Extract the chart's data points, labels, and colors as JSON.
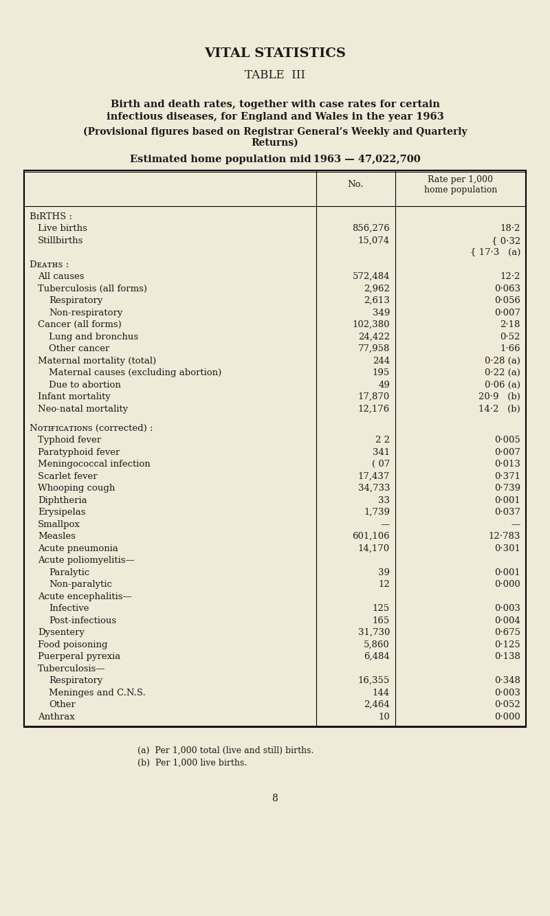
{
  "bg_color": "#f0ead8",
  "title1": "VITAL STATISTICS",
  "title2": "TABLE  III",
  "subtitle1": "Birth and death rates, together with case rates for certain",
  "subtitle2": "infectious diseases, for England and Wales in the year 1963",
  "subtitle3": "(Provisional figures based on Registrar General’s Weekly and Quarterly",
  "subtitle4": "Returns)",
  "subtitle5": "Estimated home population mid 1963 — 47,022,700",
  "col_header1": "No.",
  "col_header2": "Rate per 1,000\nhome population",
  "footnote_a": "(a)  Per 1,000 total (live and still) births.",
  "footnote_b": "(b)  Per 1,000 live births.",
  "page_num": "8",
  "rows": [
    {
      "label": "BɪRTHS :",
      "no": "",
      "rate": "",
      "style": "section",
      "indent": 0
    },
    {
      "label": "Live births",
      "no": "856,276",
      "rate": "18·2",
      "style": "normal",
      "indent": 1
    },
    {
      "label": "Stillbirths",
      "no": "15,074",
      "rate": "{ 0·32",
      "style": "normal",
      "indent": 1
    },
    {
      "label": "",
      "no": "",
      "rate": "{ 17·3   (a)",
      "style": "normal",
      "indent": 1
    },
    {
      "label": "Dᴇᴀᴛʜѕ :",
      "no": "",
      "rate": "",
      "style": "section",
      "indent": 0
    },
    {
      "label": "All causes",
      "no": "572,484",
      "rate": "12·2",
      "style": "normal",
      "indent": 1
    },
    {
      "label": "Tuberculosis (all forms)",
      "no": "2,962",
      "rate": "0·063",
      "style": "normal",
      "indent": 1
    },
    {
      "label": "Respiratory",
      "no": "2,613",
      "rate": "0·056",
      "style": "normal",
      "indent": 2
    },
    {
      "label": "Non-respiratory",
      "no": "349",
      "rate": "0·007",
      "style": "normal",
      "indent": 2
    },
    {
      "label": "Cancer (all forms)",
      "no": "102,380",
      "rate": "2·18",
      "style": "normal",
      "indent": 1
    },
    {
      "label": "Lung and bronchus",
      "no": "24,422",
      "rate": "0·52",
      "style": "normal",
      "indent": 2
    },
    {
      "label": "Other cancer",
      "no": "77,958",
      "rate": "1·66",
      "style": "normal",
      "indent": 2
    },
    {
      "label": "Maternal mortality (total)",
      "no": "244",
      "rate": "0·28 (a)",
      "style": "normal",
      "indent": 1
    },
    {
      "label": "Maternal causes (excluding abortion)",
      "no": "195",
      "rate": "0·22 (a)",
      "style": "normal",
      "indent": 2
    },
    {
      "label": "Due to abortion",
      "no": "49",
      "rate": "0·06 (a)",
      "style": "normal",
      "indent": 2
    },
    {
      "label": "Infant mortality",
      "no": "17,870",
      "rate": "20·9   (b)",
      "style": "normal",
      "indent": 1
    },
    {
      "label": "Neo-natal mortality",
      "no": "12,176",
      "rate": "14·2   (b)",
      "style": "normal",
      "indent": 1
    },
    {
      "label": "",
      "no": "",
      "rate": "",
      "style": "blank",
      "indent": 0
    },
    {
      "label": "Nᴏᴛɪғɪᴄᴀᴛɪᴏɴѕ (corrected) :",
      "no": "",
      "rate": "",
      "style": "section",
      "indent": 0
    },
    {
      "label": "Typhoid fever",
      "no": "2 2",
      "rate": "0·005",
      "style": "normal",
      "indent": 1
    },
    {
      "label": "Paratyphoid fever",
      "no": "341",
      "rate": "0·007",
      "style": "normal",
      "indent": 1
    },
    {
      "label": "Meningococcal infection",
      "no": "( 07",
      "rate": "0·013",
      "style": "normal",
      "indent": 1
    },
    {
      "label": "Scarlet fever",
      "no": "17,437",
      "rate": "0·371",
      "style": "normal",
      "indent": 1
    },
    {
      "label": "Whooping cough",
      "no": "34,733",
      "rate": "0·739",
      "style": "normal",
      "indent": 1
    },
    {
      "label": "Diphtheria",
      "no": "33",
      "rate": "0·001",
      "style": "normal",
      "indent": 1
    },
    {
      "label": "Erysipelas",
      "no": "1,739",
      "rate": "0·037",
      "style": "normal",
      "indent": 1
    },
    {
      "label": "Smallpox",
      "no": "—",
      "rate": "—",
      "style": "normal",
      "indent": 1
    },
    {
      "label": "Measles",
      "no": "601,106",
      "rate": "12·783",
      "style": "normal",
      "indent": 1
    },
    {
      "label": "Acute pneumonia",
      "no": "14,170",
      "rate": "0·301",
      "style": "normal",
      "indent": 1
    },
    {
      "label": "Acute poliomyelitis—",
      "no": "",
      "rate": "",
      "style": "normal",
      "indent": 1
    },
    {
      "label": "Paralytic",
      "no": "39",
      "rate": "0·001",
      "style": "normal",
      "indent": 2
    },
    {
      "label": "Non-paralytic",
      "no": "12",
      "rate": "0·000",
      "style": "normal",
      "indent": 2
    },
    {
      "label": "Acute encephalitis—",
      "no": "",
      "rate": "",
      "style": "normal",
      "indent": 1
    },
    {
      "label": "Infective",
      "no": "125",
      "rate": "0·003",
      "style": "normal",
      "indent": 2
    },
    {
      "label": "Post-infectious",
      "no": "165",
      "rate": "0·004",
      "style": "normal",
      "indent": 2
    },
    {
      "label": "Dysentery",
      "no": "31,730",
      "rate": "0·675",
      "style": "normal",
      "indent": 1
    },
    {
      "label": "Food poisoning",
      "no": "5,860",
      "rate": "0·125",
      "style": "normal",
      "indent": 1
    },
    {
      "label": "Puerperal pyrexia",
      "no": "6,484",
      "rate": "0·138",
      "style": "normal",
      "indent": 1
    },
    {
      "label": "Tuberculosis—",
      "no": "",
      "rate": "",
      "style": "normal",
      "indent": 1
    },
    {
      "label": "Respiratory",
      "no": "16,355",
      "rate": "0·348",
      "style": "normal",
      "indent": 2
    },
    {
      "label": "Meninges and C.N.S.",
      "no": "144",
      "rate": "0·003",
      "style": "normal",
      "indent": 2
    },
    {
      "label": "Other",
      "no": "2,464",
      "rate": "0·052",
      "style": "normal",
      "indent": 2
    },
    {
      "label": "Anthrax",
      "no": "10",
      "rate": "0·000",
      "style": "normal",
      "indent": 1
    }
  ]
}
